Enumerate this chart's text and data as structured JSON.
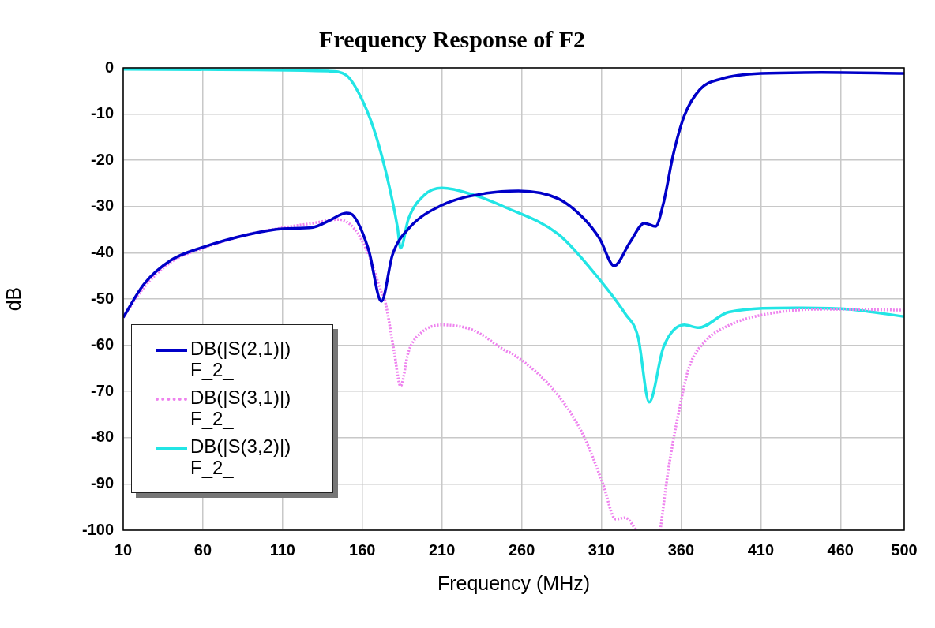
{
  "chart_data": {
    "type": "line",
    "title": "Frequency Response of F2",
    "xlabel": "Frequency (MHz)",
    "ylabel": "dB",
    "xlim": [
      10,
      500
    ],
    "xticks": [
      10,
      60,
      110,
      160,
      210,
      260,
      310,
      360,
      410,
      460,
      500
    ],
    "ylim": [
      -100,
      0
    ],
    "yticks": [
      0,
      -10,
      -20,
      -30,
      -40,
      -50,
      -60,
      -70,
      -80,
      -90,
      -100
    ],
    "grid": true,
    "legend": "bottom left",
    "marker": "none",
    "series": [
      {
        "name": "DB(|S(2,1)|) F_2_",
        "color": "#0000c8",
        "line_style": "solid",
        "x": [
          10,
          23,
          40,
          60,
          89,
          110,
          129,
          139,
          150,
          155,
          164,
          172,
          179,
          189,
          210,
          238,
          258,
          283,
          299,
          309,
          318,
          328,
          337,
          344,
          349,
          355,
          362,
          372,
          385,
          410,
          448,
          500
        ],
        "values": [
          -54,
          -46.8,
          -41.6,
          -38.8,
          -36,
          -34.8,
          -34.5,
          -33.1,
          -31.4,
          -32.2,
          -39.4,
          -50.5,
          -40.4,
          -34.8,
          -29.7,
          -27.1,
          -26.6,
          -28.3,
          -32.6,
          -37,
          -42.8,
          -37.7,
          -33.6,
          -34.3,
          -29.2,
          -18.9,
          -10.4,
          -4.6,
          -2.4,
          -1.2,
          -1,
          -1.2
        ]
      },
      {
        "name": "DB(|S(3,1)|) F_2_",
        "color": "#ee82ee",
        "line_style": "dotted",
        "x": [
          10,
          23,
          40,
          60,
          89,
          110,
          129,
          145,
          155,
          164,
          172,
          174,
          180,
          184,
          189,
          197,
          210,
          230,
          250,
          255,
          283,
          299,
          311,
          319,
          325,
          332,
          340,
          347,
          352,
          359,
          365,
          375,
          390,
          410,
          448,
          500
        ],
        "values": [
          -54,
          -47.5,
          -42,
          -39,
          -36,
          -34.6,
          -33.6,
          -32.8,
          -34.8,
          -40.4,
          -48.5,
          -50,
          -61.4,
          -68.8,
          -61.4,
          -57.3,
          -55.6,
          -56.8,
          -61.2,
          -62,
          -70.9,
          -79.7,
          -90,
          -97.6,
          -97.3,
          -100,
          null,
          -100,
          -87,
          -73.7,
          -64.8,
          -59.2,
          -55.7,
          -53.5,
          -52.2,
          -52.4
        ]
      },
      {
        "name": "DB(|S(3,2)|) F_2_",
        "color": "#22e5e5",
        "line_style": "solid",
        "x": [
          10,
          139,
          150,
          158,
          167,
          175,
          182,
          184,
          189,
          199,
          210,
          230,
          250,
          283,
          307,
          325,
          333,
          340,
          349,
          362,
          371,
          390,
          432,
          465,
          500
        ],
        "values": [
          -0.3,
          -0.7,
          -1.6,
          -5.6,
          -13,
          -22.8,
          -34.3,
          -39,
          -32.6,
          -27.5,
          -26,
          -27.5,
          -30.2,
          -36,
          -45,
          -53.2,
          -58.2,
          -72.3,
          -60.4,
          -55.6,
          -56.2,
          -52.8,
          -51.9,
          -52.2,
          -53.8
        ]
      }
    ]
  }
}
